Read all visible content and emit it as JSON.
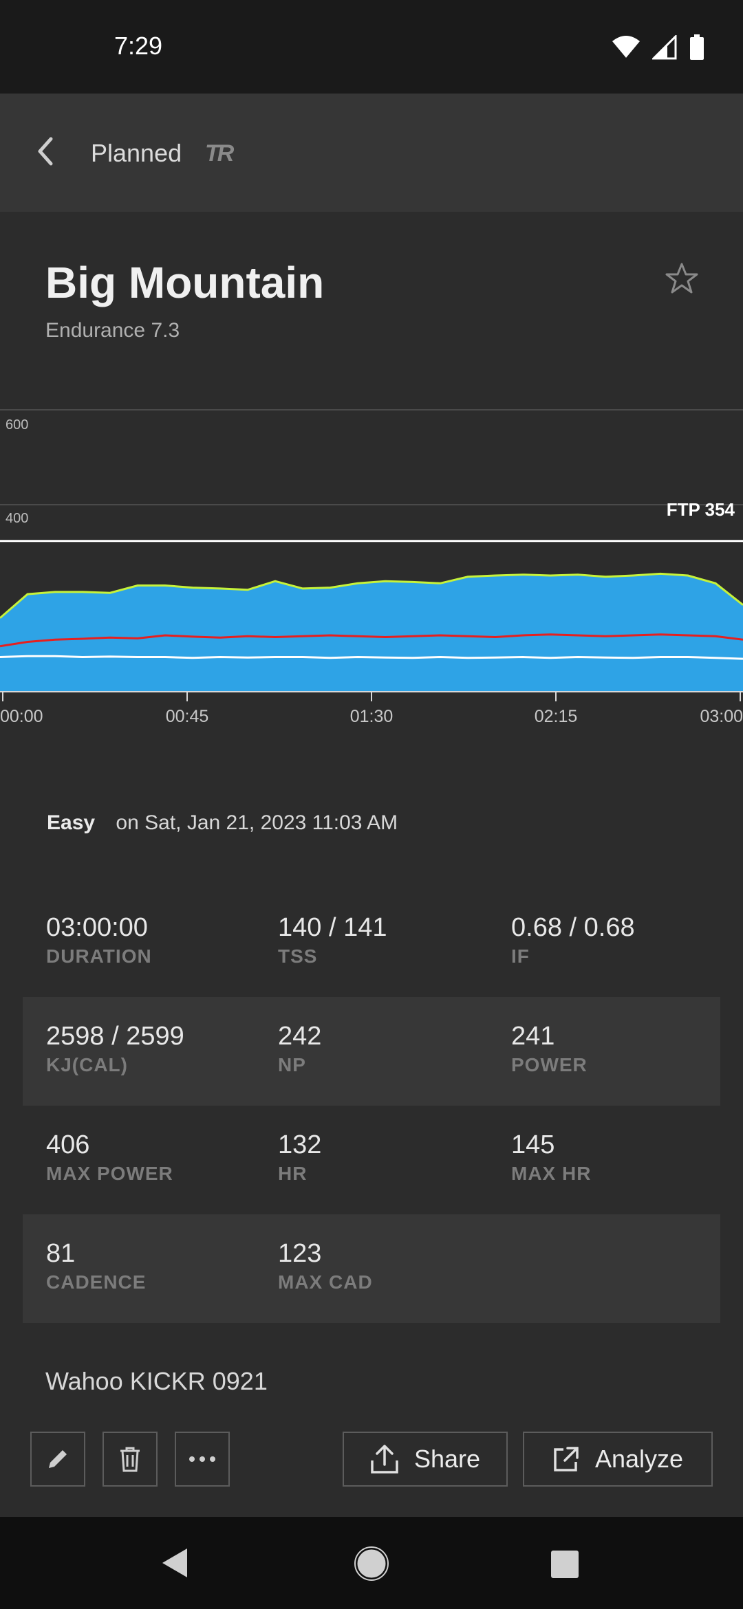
{
  "status": {
    "time": "7:29"
  },
  "header": {
    "title": "Planned",
    "logo": "TR"
  },
  "workout": {
    "title": "Big Mountain",
    "subtitle": "Endurance 7.3"
  },
  "chart_data": {
    "type": "area",
    "y_ticks": [
      "600",
      "400"
    ],
    "x_ticks": [
      "00:00",
      "00:45",
      "01:30",
      "02:15",
      "03:00"
    ],
    "ftp_label": "FTP 354",
    "ftp_value": 354,
    "ylim": [
      0,
      650
    ],
    "series": [
      {
        "values": [
          170,
          225,
          230,
          230,
          228,
          245,
          245,
          240,
          238,
          235,
          255,
          238,
          240,
          250,
          255,
          253,
          250,
          265,
          268,
          270,
          268,
          270,
          265,
          268,
          272,
          268,
          250,
          200
        ]
      },
      {
        "values": [
          105,
          115,
          120,
          122,
          125,
          123,
          130,
          127,
          125,
          128,
          126,
          128,
          130,
          128,
          126,
          128,
          130,
          128,
          126,
          130,
          132,
          130,
          128,
          130,
          132,
          130,
          128,
          120
        ]
      },
      {
        "values": [
          80,
          82,
          82,
          80,
          81,
          80,
          80,
          78,
          80,
          79,
          80,
          80,
          78,
          80,
          79,
          78,
          80,
          78,
          79,
          80,
          78,
          80,
          79,
          78,
          80,
          80,
          78,
          76
        ]
      }
    ],
    "colors": {
      "power_fill": "#2ea3e6",
      "power_line": "#c6f23a",
      "hr_line": "#e6201f",
      "cadence_line": "#ffffff",
      "ftp_line": "#ffffff"
    }
  },
  "summary": {
    "intensity": "Easy",
    "date": "on Sat, Jan 21, 2023 11:03 AM"
  },
  "metrics": [
    [
      {
        "value": "03:00:00",
        "label": "DURATION"
      },
      {
        "value": "140 / 141",
        "label": "TSS"
      },
      {
        "value": "0.68 / 0.68",
        "label": "IF"
      }
    ],
    [
      {
        "value": "2598 / 2599",
        "label": "KJ(CAL)"
      },
      {
        "value": "242",
        "label": "NP"
      },
      {
        "value": "241",
        "label": "POWER"
      }
    ],
    [
      {
        "value": "406",
        "label": "MAX POWER"
      },
      {
        "value": "132",
        "label": "HR"
      },
      {
        "value": "145",
        "label": "MAX HR"
      }
    ],
    [
      {
        "value": "81",
        "label": "CADENCE"
      },
      {
        "value": "123",
        "label": "MAX CAD"
      }
    ]
  ],
  "device": "Wahoo KICKR 0921",
  "actions": {
    "share_label": "Share",
    "analyze_label": "Analyze"
  },
  "icons": [
    "wifi-icon",
    "signal-icon",
    "battery-icon",
    "back-arrow-icon",
    "star-icon",
    "pencil-icon",
    "trash-icon",
    "more-icon",
    "share-icon",
    "external-link-icon",
    "nav-back-icon",
    "nav-home-icon",
    "nav-recents-icon"
  ]
}
